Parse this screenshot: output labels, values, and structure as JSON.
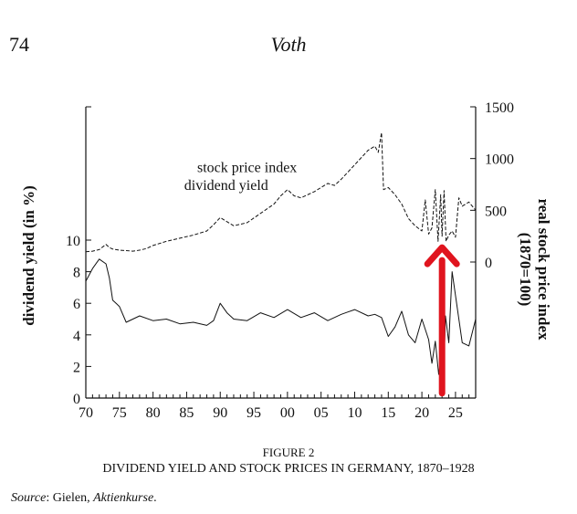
{
  "page": {
    "number": "74",
    "running_head": "Voth"
  },
  "figure": {
    "label": "FIGURE 2",
    "title": "DIVIDEND YIELD AND STOCK PRICES IN GERMANY, 1870–1928",
    "source_prefix": "Source",
    "source_text": ": Gielen, ",
    "source_work": "Aktienkurse",
    "source_end": "."
  },
  "colors": {
    "ink": "#111111",
    "annotation_arrow": "#e0141e"
  },
  "chart_data": {
    "type": "line",
    "x_unit": "year",
    "xlim": [
      1870,
      1928
    ],
    "x_ticks": [
      1870,
      1875,
      1880,
      1885,
      1890,
      1895,
      1900,
      1905,
      1910,
      1915,
      1920,
      1925
    ],
    "x_tick_labels": [
      "70",
      "75",
      "80",
      "85",
      "90",
      "95",
      "00",
      "05",
      "10",
      "15",
      "20",
      "25"
    ],
    "left_axis": {
      "label": "dividend yield (in %)",
      "ylim": [
        0,
        10
      ],
      "ticks": [
        0,
        2,
        4,
        6,
        8,
        10
      ],
      "tick_labels": [
        "0",
        "2",
        "4",
        "6",
        "8",
        "10"
      ]
    },
    "right_axis": {
      "label": "real stock price index (1870=100)",
      "ylim": [
        0,
        1500
      ],
      "ticks": [
        0,
        500,
        1000,
        1500
      ],
      "tick_labels": [
        "0",
        "500",
        "1000",
        "1500"
      ]
    },
    "series": [
      {
        "name": "stock price index",
        "axis": "right",
        "style": "dashed",
        "label_year": 1870,
        "x": [
          1870,
          1871,
          1872,
          1873,
          1873.5,
          1874,
          1875,
          1876,
          1877,
          1878,
          1879,
          1880,
          1882,
          1884,
          1886,
          1888,
          1889,
          1890,
          1891,
          1892,
          1894,
          1896,
          1898,
          1899,
          1900,
          1901,
          1902,
          1904,
          1906,
          1907,
          1908,
          1910,
          1912,
          1913,
          1913.5,
          1914,
          1914.3,
          1915,
          1916,
          1917,
          1918,
          1919,
          1920,
          1920.5,
          1921,
          1921.5,
          1922,
          1922.4,
          1922.8,
          1923,
          1923.3,
          1923.6,
          1924,
          1924.5,
          1925,
          1925.5,
          1926,
          1927,
          1928
        ],
        "y": [
          100,
          105,
          120,
          170,
          140,
          125,
          115,
          110,
          105,
          115,
          130,
          160,
          200,
          230,
          260,
          300,
          360,
          430,
          390,
          350,
          380,
          470,
          560,
          640,
          700,
          640,
          620,
          680,
          760,
          740,
          800,
          940,
          1080,
          1120,
          1060,
          1250,
          700,
          720,
          650,
          560,
          420,
          350,
          300,
          600,
          270,
          330,
          700,
          200,
          650,
          250,
          690,
          200,
          260,
          300,
          240,
          620,
          540,
          580,
          500
        ]
      },
      {
        "name": "dividend yield",
        "axis": "left",
        "style": "solid",
        "label_year": 1886,
        "x": [
          1870,
          1871,
          1872,
          1873,
          1873.5,
          1874,
          1875,
          1876,
          1878,
          1880,
          1882,
          1884,
          1886,
          1888,
          1889,
          1890,
          1891,
          1892,
          1894,
          1896,
          1898,
          1900,
          1902,
          1904,
          1906,
          1908,
          1910,
          1912,
          1913,
          1914,
          1915,
          1916,
          1917,
          1918,
          1919,
          1920,
          1921,
          1921.5,
          1922,
          1922.5,
          1923,
          1923.2,
          1923.5,
          1924,
          1924.5,
          1925,
          1926,
          1927,
          1928
        ],
        "y": [
          7.4,
          8.2,
          8.8,
          8.5,
          7.6,
          6.2,
          5.8,
          4.8,
          5.2,
          4.9,
          5.0,
          4.7,
          4.8,
          4.6,
          4.9,
          6.0,
          5.4,
          5.0,
          4.9,
          5.4,
          5.1,
          5.6,
          5.1,
          5.4,
          4.9,
          5.3,
          5.6,
          5.2,
          5.3,
          5.1,
          3.9,
          4.5,
          5.5,
          4.0,
          3.5,
          5.0,
          3.7,
          2.2,
          3.6,
          1.5,
          3.0,
          1.0,
          5.2,
          3.5,
          8.0,
          6.5,
          3.5,
          3.3,
          5.0
        ]
      }
    ],
    "annotation": {
      "type": "arrow",
      "color": "#e0141e",
      "x_year": 1923,
      "from_left_value": 0.3,
      "to_left_value": 9.3
    },
    "grid": false
  }
}
